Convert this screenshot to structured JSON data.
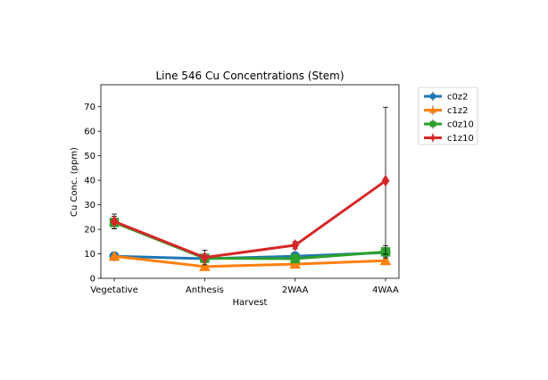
{
  "chart_data": {
    "type": "line",
    "title": "Line 546 Cu Concentrations (Stem)",
    "xlabel": "Harvest",
    "ylabel": "Cu Conc. (ppm)",
    "categories": [
      "Vegetative",
      "Anthesis",
      "2WAA",
      "4WAA"
    ],
    "ylim": [
      0,
      79
    ],
    "yticks": [
      0,
      10,
      20,
      30,
      40,
      50,
      60,
      70
    ],
    "grid": false,
    "legend_position": "outside top-right",
    "series": [
      {
        "name": "c0z2",
        "color": "#1f77b4",
        "marker": "circle",
        "values": [
          9.0,
          8.0,
          9.0,
          10.5
        ],
        "errors": [
          0.5,
          0.5,
          0.5,
          0.5
        ]
      },
      {
        "name": "c1z2",
        "color": "#ff7f0e",
        "marker": "triangle",
        "values": [
          9.0,
          4.8,
          5.8,
          7.2
        ],
        "errors": [
          0.4,
          0.3,
          0.4,
          0.4
        ]
      },
      {
        "name": "c0z10",
        "color": "#2ca02c",
        "marker": "square",
        "values": [
          22.8,
          8.2,
          8.0,
          10.8
        ],
        "errors": [
          2.5,
          0.8,
          0.8,
          2.5
        ]
      },
      {
        "name": "c1z10",
        "color": "#d62728",
        "marker": "diamond",
        "values": [
          23.2,
          8.5,
          13.5,
          39.8
        ],
        "errors": [
          3.0,
          3.0,
          1.5,
          30.0
        ]
      }
    ]
  }
}
